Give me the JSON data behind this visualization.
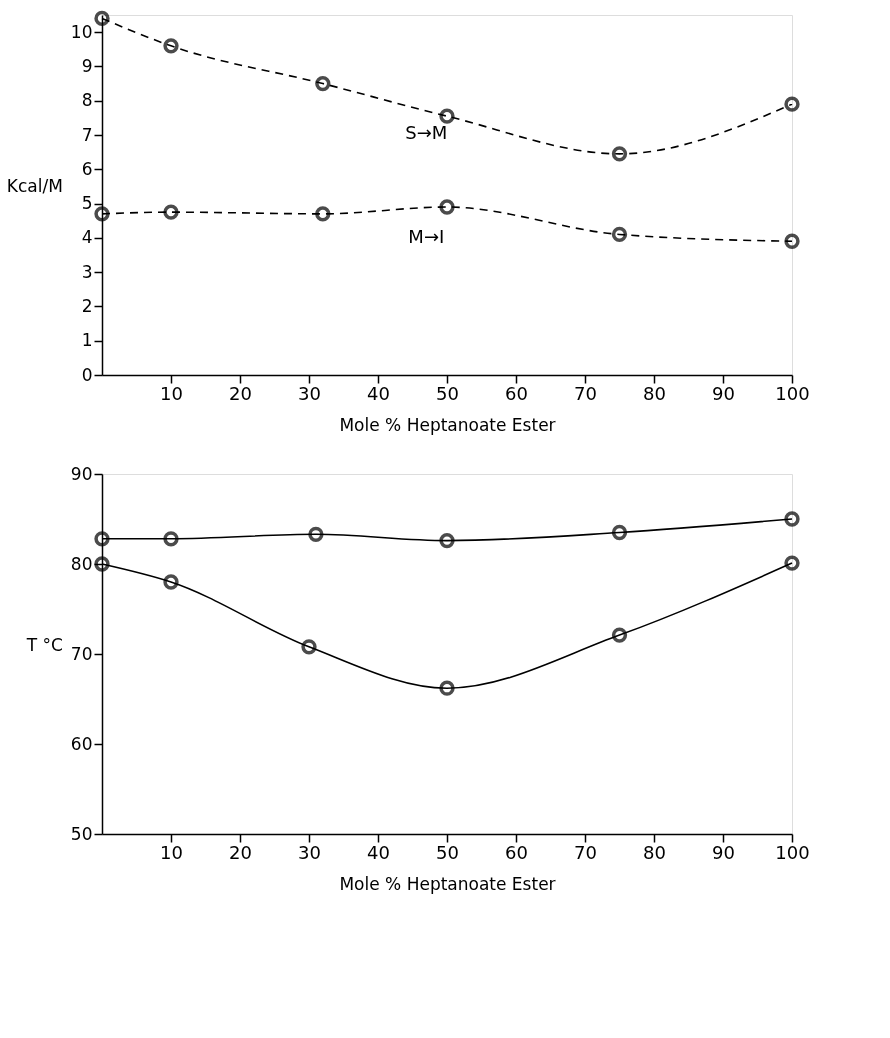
{
  "chart_data": [
    {
      "type": "line",
      "xlabel": "Mole % Heptanoate Ester",
      "ylabel": "Kcal/M",
      "xlim": [
        0,
        100
      ],
      "xticks": [
        10,
        20,
        30,
        40,
        50,
        60,
        70,
        80,
        90,
        100
      ],
      "ylim": [
        0,
        10.5
      ],
      "yticks": [
        0,
        1,
        2,
        3,
        4,
        5,
        6,
        7,
        8,
        9,
        10
      ],
      "marker": "circle",
      "line_style": "dashed",
      "grid": false,
      "series": [
        {
          "color": "#000000",
          "x": [
            0,
            10,
            32,
            50,
            75,
            100
          ],
          "values": [
            10.4,
            9.6,
            8.5,
            7.55,
            6.45,
            7.9
          ]
        },
        {
          "color": "#000000",
          "x": [
            0,
            10,
            32,
            50,
            75,
            100
          ],
          "values": [
            4.7,
            4.75,
            4.7,
            4.9,
            4.1,
            3.9
          ]
        }
      ],
      "annotations": [
        "S→M",
        "M→I"
      ]
    },
    {
      "type": "line",
      "xlabel": "Mole % Heptanoate Ester",
      "ylabel": "T °C",
      "xlim": [
        0,
        100
      ],
      "xticks": [
        10,
        20,
        30,
        40,
        50,
        60,
        70,
        80,
        90,
        100
      ],
      "ylim": [
        50,
        90
      ],
      "yticks": [
        50,
        60,
        70,
        80,
        90
      ],
      "marker": "circle",
      "line_style": "solid",
      "grid": false,
      "series": [
        {
          "color": "#000000",
          "x": [
            0,
            10,
            31,
            50,
            75,
            100
          ],
          "values": [
            82.8,
            82.8,
            83.3,
            82.6,
            83.5,
            85
          ]
        },
        {
          "color": "#000000",
          "x": [
            0,
            10,
            30,
            50,
            75,
            100
          ],
          "values": [
            80,
            78,
            70.8,
            66.2,
            72.1,
            80.1
          ]
        }
      ]
    }
  ]
}
